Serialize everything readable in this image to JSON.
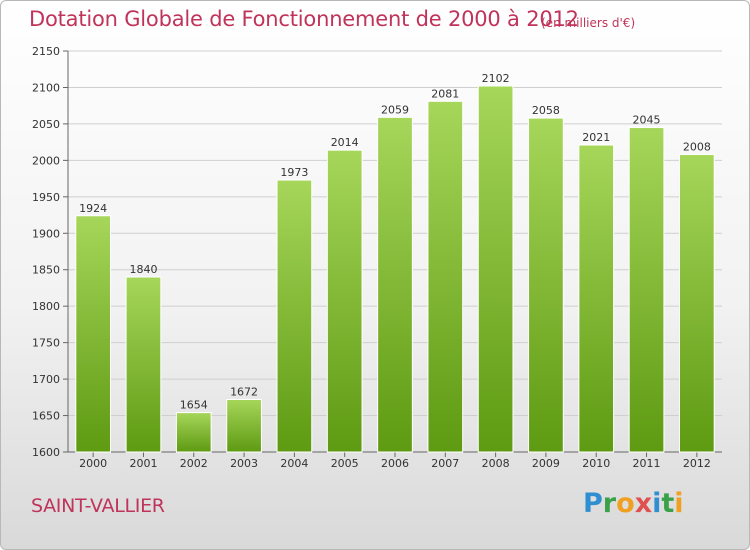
{
  "title": "Dotation Globale de Fonctionnement de 2000 à 2012",
  "unit_note": "(en milliers d'€)",
  "commune": "SAINT-VALLIER",
  "logo_letters": [
    "P",
    "r",
    "o",
    "x",
    "i",
    "t",
    "i"
  ],
  "colors": {
    "title": "#c0335a",
    "bar_light": "#a6d65a",
    "bar_dark": "#5e9a12",
    "grid": "#cfcfcf"
  },
  "chart_data": {
    "type": "bar",
    "categories": [
      "2000",
      "2001",
      "2002",
      "2003",
      "2004",
      "2005",
      "2006",
      "2007",
      "2008",
      "2009",
      "2010",
      "2011",
      "2012"
    ],
    "values": [
      1924,
      1840,
      1654,
      1672,
      1973,
      2014,
      2059,
      2081,
      2102,
      2058,
      2021,
      2045,
      2008
    ],
    "data_labels": [
      "1924",
      "1840",
      "1654",
      "1672",
      "1973",
      "2014",
      "2059",
      "2081",
      "2102",
      "2058",
      "2021",
      "2045",
      "2008"
    ],
    "title": "Dotation Globale de Fonctionnement de 2000 à 2012",
    "xlabel": "",
    "ylabel": "",
    "ylim": [
      1600,
      2150
    ],
    "yticks": [
      "1600",
      "1650",
      "1700",
      "1750",
      "1800",
      "1850",
      "1900",
      "1950",
      "2000",
      "2050",
      "2100",
      "2150"
    ],
    "grid": true,
    "legend": "none"
  }
}
